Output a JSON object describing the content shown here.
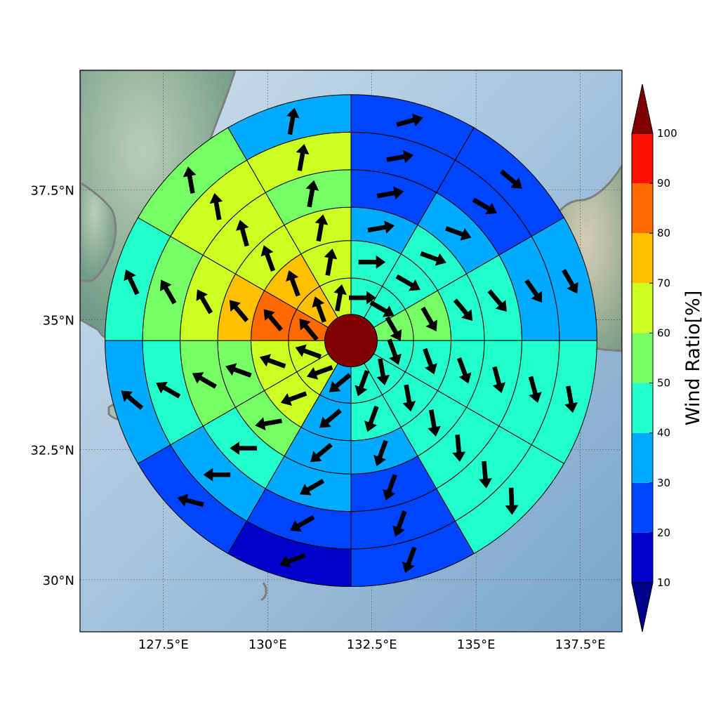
{
  "map": {
    "lon_ticks": [
      "127.5°E",
      "130°E",
      "132.5°E",
      "135°E",
      "137.5°E"
    ],
    "lat_ticks": [
      "30°N",
      "32.5°N",
      "35°N",
      "37.5°N"
    ],
    "lon_tick_values": [
      127.5,
      130,
      132.5,
      135,
      137.5
    ],
    "lat_tick_values": [
      30,
      32.5,
      35,
      37.5
    ],
    "lon_range": [
      125.5,
      138.5
    ],
    "lat_range": [
      29,
      39.8
    ],
    "center": {
      "lon": 132.0,
      "lat": 34.6
    },
    "ring_radii_deg": [
      0.63,
      1.5,
      2.4,
      3.2,
      4.1,
      5.0,
      5.9
    ],
    "grid": true
  },
  "sectors": {
    "ring_order": "inner to outer",
    "sector_order": "clockwise from north (30° each)",
    "values": [
      [
        40,
        40,
        50,
        45,
        40,
        40,
        35,
        60,
        65,
        85,
        75,
        65
      ],
      [
        35,
        40,
        45,
        40,
        40,
        30,
        35,
        55,
        55,
        70,
        65,
        65
      ],
      [
        25,
        35,
        40,
        40,
        40,
        25,
        30,
        40,
        50,
        60,
        60,
        55
      ],
      [
        25,
        25,
        35,
        40,
        45,
        25,
        20,
        35,
        45,
        55,
        60,
        60
      ],
      [
        20,
        25,
        35,
        45,
        40,
        20,
        15,
        25,
        35,
        45,
        55,
        35
      ]
    ],
    "wind_dir_deg": [
      [
        90,
        120,
        150,
        160,
        170,
        200,
        230,
        250,
        290,
        320,
        340,
        10
      ],
      [
        80,
        110,
        140,
        160,
        170,
        200,
        230,
        260,
        290,
        320,
        340,
        10
      ],
      [
        80,
        110,
        140,
        165,
        175,
        200,
        240,
        270,
        300,
        330,
        345,
        10
      ],
      [
        80,
        120,
        145,
        165,
        175,
        200,
        240,
        270,
        300,
        330,
        350,
        10
      ],
      [
        75,
        130,
        150,
        170,
        178,
        200,
        250,
        285,
        310,
        335,
        350,
        10
      ]
    ]
  },
  "center_value": 100,
  "colorbar": {
    "title": "Wind Ratio[%]",
    "labels": [
      "10",
      "20",
      "30",
      "40",
      "50",
      "60",
      "70",
      "80",
      "90",
      "100"
    ],
    "colors": [
      "#0000cc",
      "#0044ff",
      "#00aaff",
      "#22ffcc",
      "#77ff66",
      "#ccff22",
      "#ffc000",
      "#ff6a00",
      "#ff1000"
    ],
    "under_color": "#00008b",
    "over_color": "#800000"
  },
  "icons": {
    "wind_arrow": "wind-direction-arrow-icon"
  }
}
